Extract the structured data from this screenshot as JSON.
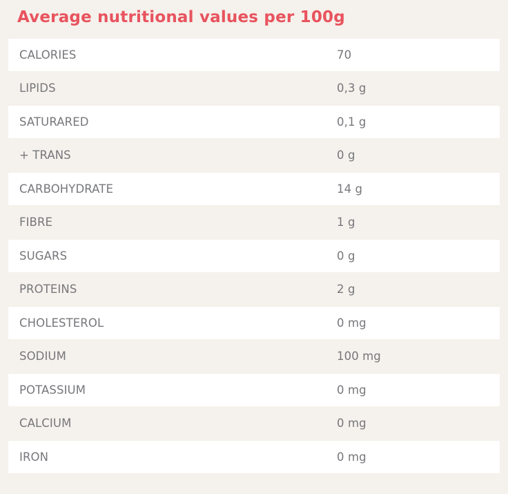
{
  "page": {
    "title": "Average nutritional values per 100g",
    "colors": {
      "background": "#f5f1ec",
      "row_white": "#ffffff",
      "title_red": "#e8535e",
      "text_gray": "#76777b"
    }
  },
  "table": {
    "rows": [
      {
        "label": "CALORIES",
        "value": "70"
      },
      {
        "label": "LIPIDS",
        "value": "0,3 g"
      },
      {
        "label": "SATURARED",
        "value": "0,1 g"
      },
      {
        "label": "+ TRANS",
        "value": "0 g"
      },
      {
        "label": "CARBOHYDRATE",
        "value": "14 g"
      },
      {
        "label": "FIBRE",
        "value": "1 g"
      },
      {
        "label": "SUGARS",
        "value": "0 g"
      },
      {
        "label": "PROTEINS",
        "value": "2 g"
      },
      {
        "label": "CHOLESTEROL",
        "value": "0 mg"
      },
      {
        "label": "SODIUM",
        "value": "100 mg"
      },
      {
        "label": "POTASSIUM",
        "value": "0 mg"
      },
      {
        "label": "CALCIUM",
        "value": "0 mg"
      },
      {
        "label": "IRON",
        "value": "0 mg"
      }
    ]
  }
}
